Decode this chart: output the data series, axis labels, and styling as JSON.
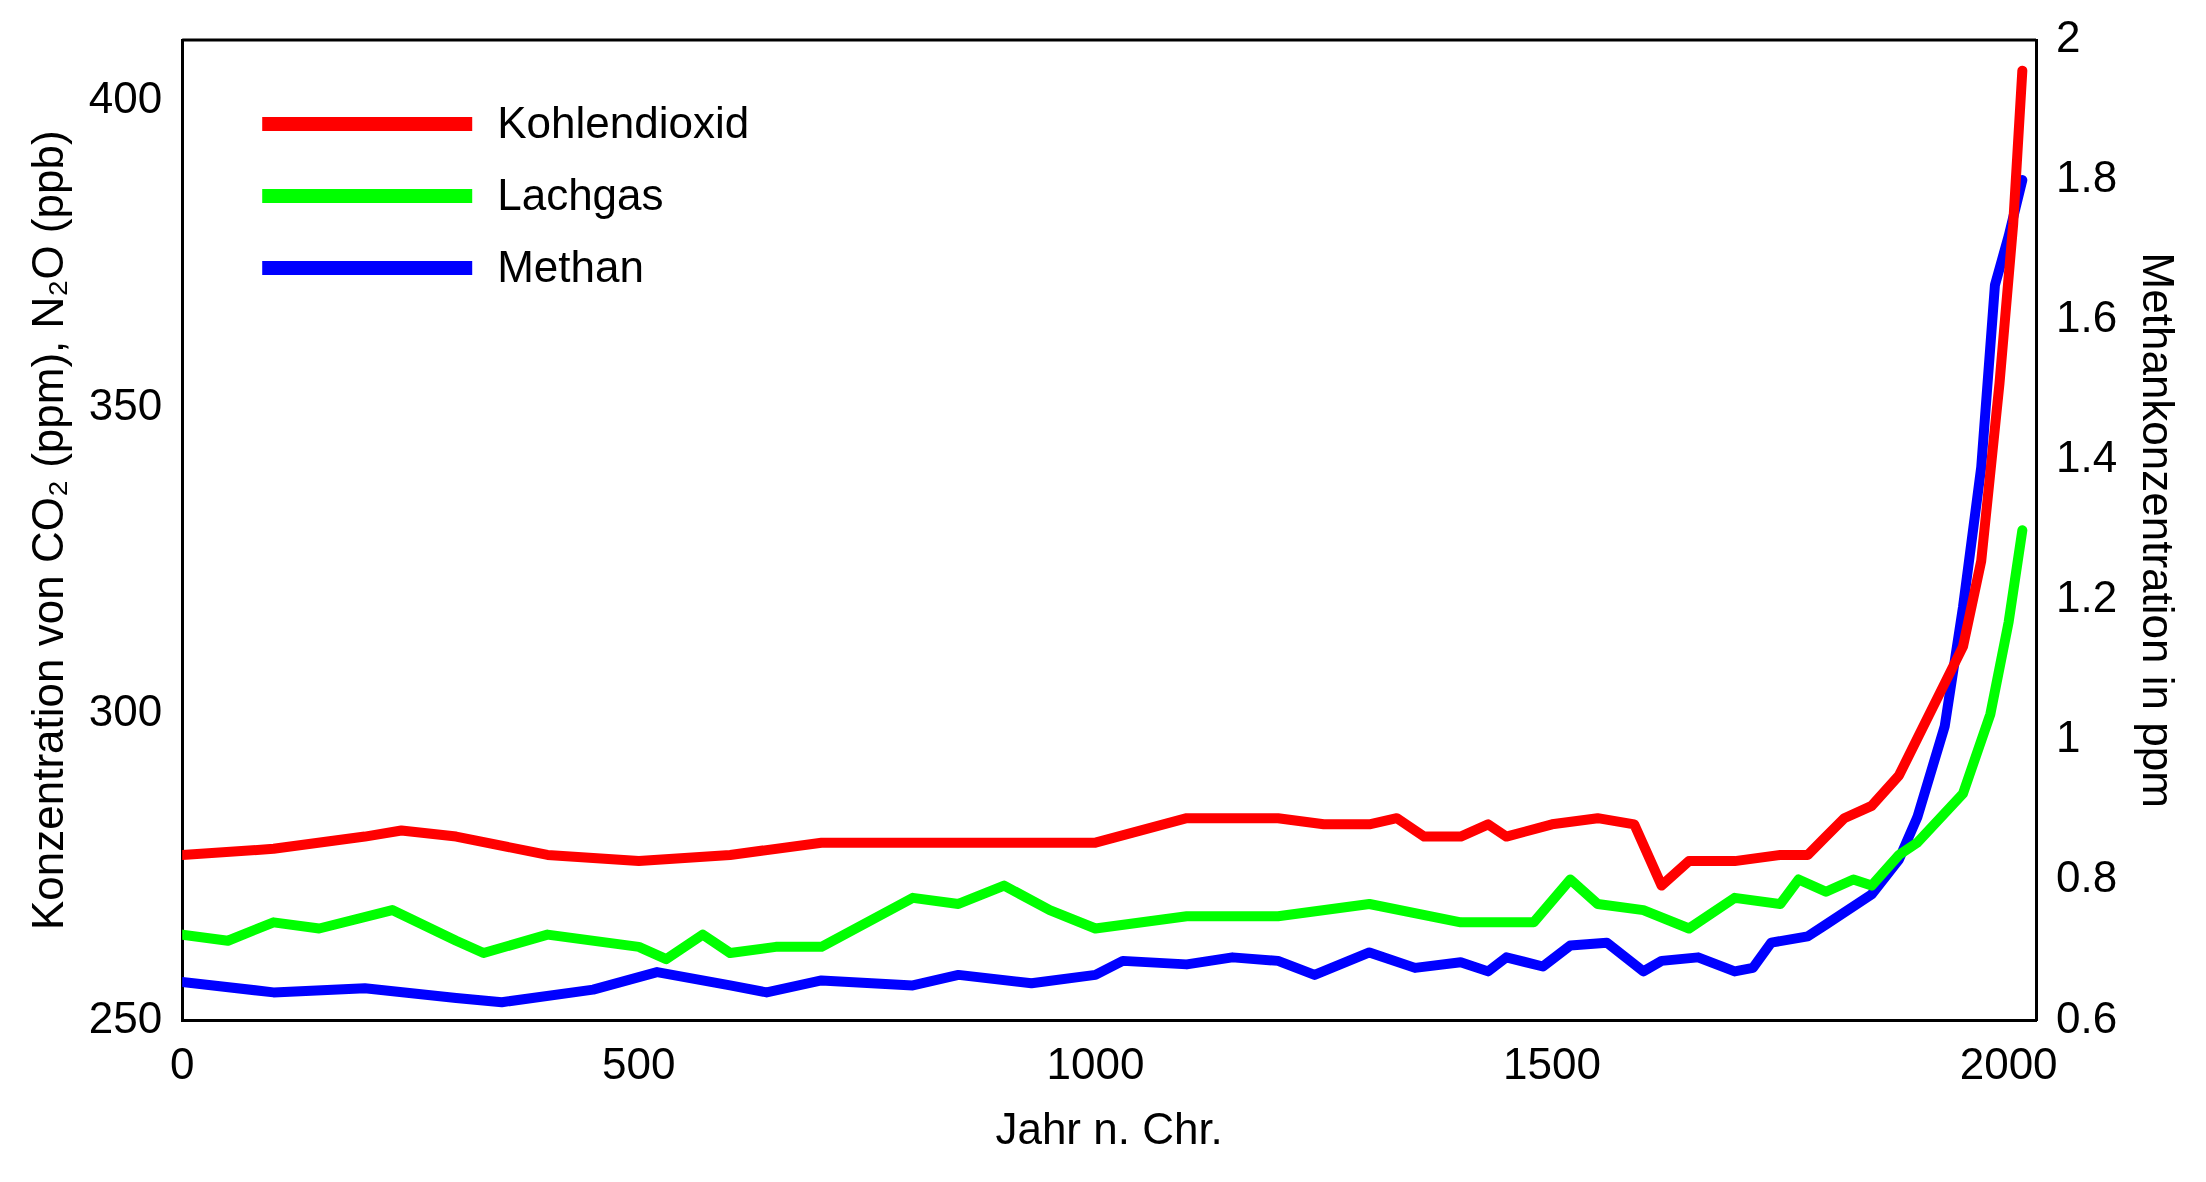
{
  "chart_data": {
    "type": "line",
    "xlabel": "Jahr n. Chr.",
    "ylabel": "Konzentration von CO₂ (ppm), N₂O (ppb)",
    "y2label": "Methankonzentration in ppm",
    "xlim": [
      0,
      2030
    ],
    "xticks": [
      0,
      500,
      1000,
      1500,
      2000
    ],
    "ylim": [
      250,
      410
    ],
    "yticks": [
      250,
      300,
      350,
      400
    ],
    "y2lim": [
      0.6,
      2
    ],
    "y2ticks": [
      0.6,
      0.8,
      1,
      1.2,
      1.4,
      1.6,
      1.8,
      2
    ],
    "legend": "top left",
    "grid": false,
    "marker": "none",
    "line_style": "solid",
    "series": [
      {
        "name": "Kohlendioxid",
        "color": "#ff0000",
        "x": [
          0,
          100,
          200,
          240,
          300,
          400,
          500,
          600,
          700,
          800,
          900,
          1000,
          1050,
          1100,
          1200,
          1250,
          1300,
          1330,
          1360,
          1400,
          1430,
          1450,
          1500,
          1550,
          1590,
          1620,
          1650,
          1700,
          1750,
          1780,
          1800,
          1820,
          1850,
          1880,
          1900,
          1930,
          1950,
          1970,
          1990,
          2005,
          2015
        ],
        "values": [
          277,
          278,
          280,
          281,
          280,
          277,
          276,
          277,
          279,
          279,
          279,
          279,
          281,
          283,
          283,
          282,
          282,
          283,
          280,
          280,
          282,
          280,
          282,
          283,
          282,
          272,
          276,
          276,
          277,
          277,
          280,
          283,
          285,
          290,
          296,
          305,
          311,
          325,
          354,
          380,
          405
        ]
      },
      {
        "name": "Lachgas",
        "color": "#00ff00",
        "x": [
          0,
          50,
          100,
          150,
          230,
          300,
          330,
          400,
          500,
          530,
          570,
          600,
          650,
          700,
          800,
          850,
          900,
          950,
          1000,
          1100,
          1200,
          1300,
          1400,
          1480,
          1520,
          1550,
          1600,
          1650,
          1700,
          1750,
          1770,
          1800,
          1830,
          1850,
          1880,
          1900,
          1950,
          1980,
          2000,
          2015
        ],
        "values": [
          264,
          263,
          266,
          265,
          268,
          263,
          261,
          264,
          262,
          260,
          264,
          261,
          262,
          262,
          270,
          269,
          272,
          268,
          265,
          267,
          267,
          269,
          266,
          266,
          273,
          269,
          268,
          265,
          270,
          269,
          273,
          271,
          273,
          272,
          277,
          279,
          287,
          300,
          315,
          330
        ]
      },
      {
        "name": "Methan",
        "color": "#0000ff",
        "axis": "y2",
        "x": [
          0,
          100,
          200,
          300,
          350,
          450,
          520,
          600,
          640,
          700,
          800,
          850,
          930,
          1000,
          1030,
          1100,
          1150,
          1200,
          1240,
          1300,
          1350,
          1400,
          1430,
          1450,
          1490,
          1520,
          1560,
          1600,
          1620,
          1660,
          1700,
          1720,
          1740,
          1780,
          1800,
          1850,
          1880,
          1900,
          1930,
          1950,
          1970,
          1985,
          2000,
          2015
        ],
        "values": [
          0.655,
          0.64,
          0.646,
          0.632,
          0.626,
          0.644,
          0.669,
          0.65,
          0.64,
          0.657,
          0.65,
          0.665,
          0.653,
          0.665,
          0.685,
          0.68,
          0.69,
          0.685,
          0.665,
          0.697,
          0.675,
          0.683,
          0.67,
          0.69,
          0.677,
          0.707,
          0.711,
          0.67,
          0.685,
          0.69,
          0.67,
          0.675,
          0.711,
          0.72,
          0.737,
          0.78,
          0.83,
          0.89,
          1.02,
          1.19,
          1.39,
          1.65,
          1.72,
          1.8
        ]
      }
    ]
  }
}
